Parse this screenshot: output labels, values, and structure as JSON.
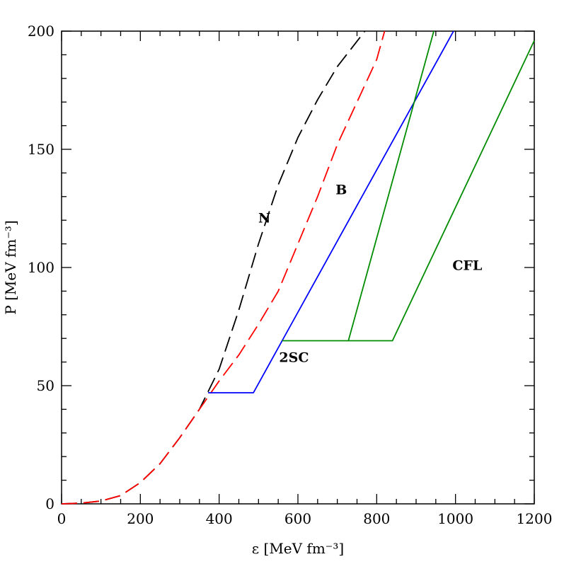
{
  "chart_data": {
    "type": "line",
    "xlabel": "ε [MeV fm⁻³]",
    "ylabel": "P [MeV fm⁻³]",
    "xlim": [
      0,
      1200
    ],
    "ylim": [
      0,
      200
    ],
    "x_ticks": [
      0,
      200,
      400,
      600,
      800,
      1000,
      1200
    ],
    "y_ticks": [
      0,
      50,
      100,
      150,
      200
    ],
    "x_tick_labels": [
      "0",
      "200",
      "400",
      "600",
      "800",
      "1000",
      "1200"
    ],
    "y_tick_labels": [
      "0",
      "50",
      "100",
      "150",
      "200"
    ],
    "grid": false,
    "series": [
      {
        "name": "N",
        "color": "#000000",
        "dash": "dashed",
        "points": [
          [
            0,
            0
          ],
          [
            50,
            0.3
          ],
          [
            100,
            1.2
          ],
          [
            150,
            3.5
          ],
          [
            200,
            9
          ],
          [
            250,
            17
          ],
          [
            300,
            28
          ],
          [
            350,
            40
          ],
          [
            400,
            57
          ],
          [
            450,
            82
          ],
          [
            500,
            110
          ],
          [
            550,
            135
          ],
          [
            600,
            155
          ],
          [
            650,
            171
          ],
          [
            700,
            185
          ],
          [
            770,
            200
          ]
        ]
      },
      {
        "name": "B",
        "color": "#ff0000",
        "dash": "dashed",
        "points": [
          [
            0,
            0
          ],
          [
            50,
            0.3
          ],
          [
            100,
            1.2
          ],
          [
            150,
            3.5
          ],
          [
            200,
            9
          ],
          [
            250,
            17
          ],
          [
            300,
            28
          ],
          [
            350,
            40
          ],
          [
            400,
            52
          ],
          [
            450,
            63
          ],
          [
            500,
            76
          ],
          [
            550,
            90
          ],
          [
            600,
            110
          ],
          [
            650,
            130
          ],
          [
            700,
            152
          ],
          [
            750,
            170
          ],
          [
            800,
            188
          ],
          [
            820,
            200
          ]
        ]
      },
      {
        "name": "2SC",
        "color": "#0000ff",
        "dash": "solid",
        "points": [
          [
            372,
            47
          ],
          [
            487,
            47
          ],
          [
            560,
            69
          ],
          [
            995,
            200
          ]
        ]
      },
      {
        "name": "CFL",
        "color": "#008c00",
        "dash": "solid",
        "points": [
          [
            560,
            69
          ],
          [
            728,
            69
          ],
          [
            945,
            200
          ]
        ]
      },
      {
        "name": "CFL",
        "color": "#008c00",
        "dash": "solid",
        "points": [
          [
            728,
            69
          ],
          [
            840,
            69
          ],
          [
            1200,
            196
          ]
        ]
      }
    ],
    "annotations": [
      {
        "text": "N",
        "x": 515,
        "y": 119
      },
      {
        "text": "B",
        "x": 710,
        "y": 131
      },
      {
        "text": "2SC",
        "x": 590,
        "y": 60
      },
      {
        "text": "CFL",
        "x": 1030,
        "y": 99
      }
    ]
  }
}
